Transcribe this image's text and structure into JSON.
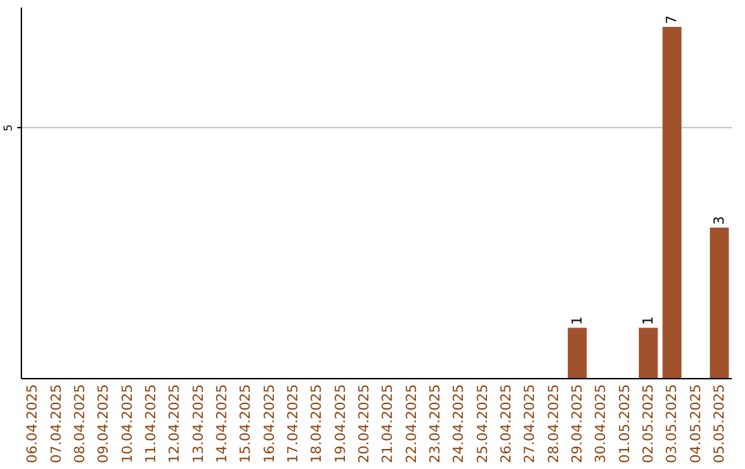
{
  "chart_data": {
    "type": "bar",
    "categories": [
      "06.04.2025",
      "07.04.2025",
      "08.04.2025",
      "09.04.2025",
      "10.04.2025",
      "11.04.2025",
      "12.04.2025",
      "13.04.2025",
      "14.04.2025",
      "15.04.2025",
      "16.04.2025",
      "17.04.2025",
      "18.04.2025",
      "19.04.2025",
      "20.04.2025",
      "21.04.2025",
      "22.04.2025",
      "23.04.2025",
      "24.04.2025",
      "25.04.2025",
      "26.04.2025",
      "27.04.2025",
      "28.04.2025",
      "29.04.2025",
      "30.04.2025",
      "01.05.2025",
      "02.05.2025",
      "03.05.2025",
      "04.05.2025",
      "05.05.2025"
    ],
    "values": [
      null,
      null,
      null,
      null,
      null,
      null,
      null,
      null,
      null,
      null,
      null,
      null,
      null,
      null,
      null,
      null,
      null,
      null,
      null,
      null,
      null,
      null,
      null,
      1,
      null,
      null,
      1,
      7,
      null,
      3
    ],
    "color": "#a0522d",
    "ylim": [
      0,
      7.4
    ],
    "yticks": [
      5
    ],
    "grid": "y",
    "data_labels": true
  }
}
